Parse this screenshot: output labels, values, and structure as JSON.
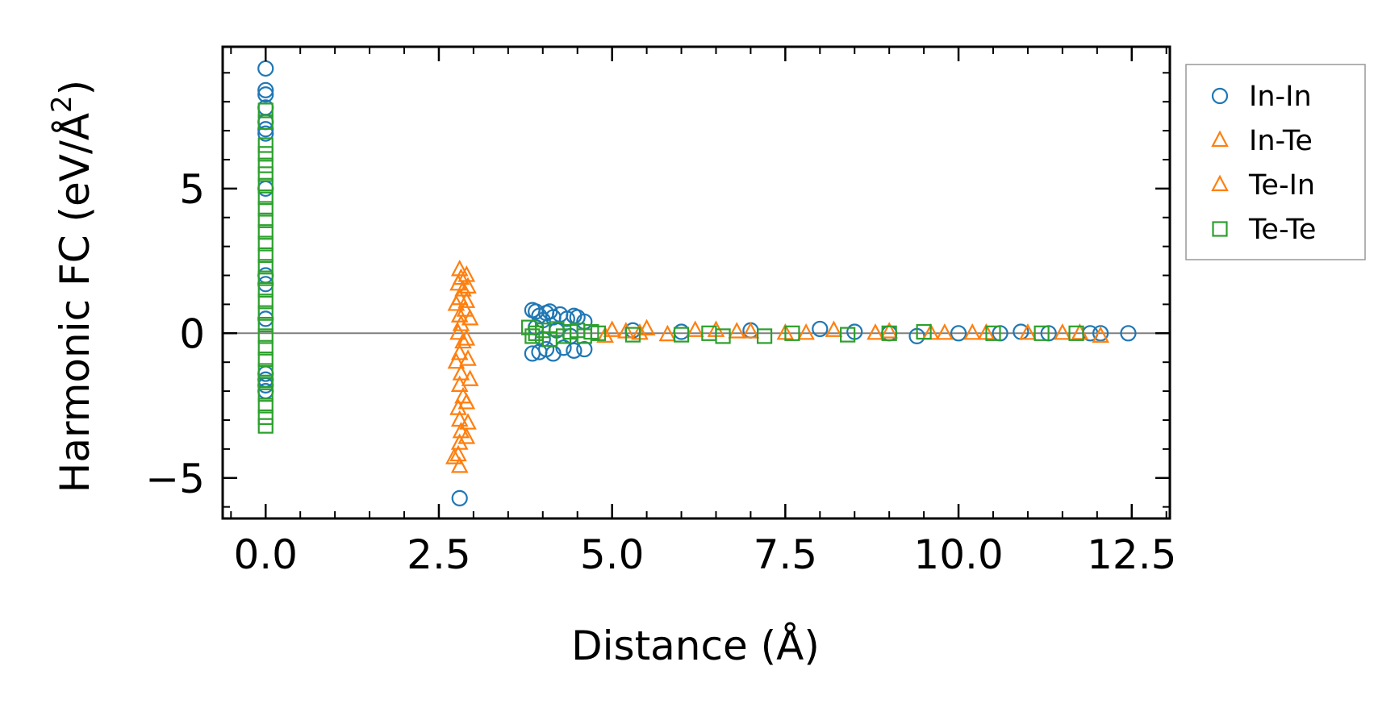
{
  "chart_data": {
    "type": "scatter",
    "xlabel": "Distance (Å)",
    "ylabel_prefix": "Harmonic FC (eV/Å",
    "ylabel_sup": "2",
    "ylabel_suffix": ")",
    "xlim": [
      -0.62,
      13.05
    ],
    "ylim": [
      -6.4,
      9.9
    ],
    "xticks": [
      0.0,
      2.5,
      5.0,
      7.5,
      10.0,
      12.5
    ],
    "xtick_labels": [
      "0.0",
      "2.5",
      "5.0",
      "7.5",
      "10.0",
      "12.5"
    ],
    "yticks": [
      -5,
      0,
      5
    ],
    "ytick_labels": [
      "−5",
      "0",
      "5"
    ],
    "zero_line": 0,
    "legend_position": "outside-right-top",
    "series": [
      {
        "name": "In-In",
        "marker": "circle",
        "color": "#1f77b4",
        "points": [
          [
            0,
            9.15
          ],
          [
            0,
            8.4
          ],
          [
            0,
            8.25
          ],
          [
            0,
            7.8
          ],
          [
            0,
            7.3
          ],
          [
            0,
            7.05
          ],
          [
            0,
            6.9
          ],
          [
            0,
            5.0
          ],
          [
            0,
            2.0
          ],
          [
            0,
            1.7
          ],
          [
            0,
            0.5
          ],
          [
            0,
            -1.4
          ],
          [
            0,
            -1.6
          ],
          [
            0,
            -1.8
          ],
          [
            0,
            -2.0
          ],
          [
            2.8,
            -5.7
          ],
          [
            3.85,
            0.8
          ],
          [
            3.9,
            0.75
          ],
          [
            3.95,
            0.6
          ],
          [
            4.0,
            0.45
          ],
          [
            4.05,
            0.7
          ],
          [
            4.1,
            0.75
          ],
          [
            4.15,
            0.55
          ],
          [
            4.25,
            0.65
          ],
          [
            4.35,
            0.5
          ],
          [
            4.45,
            0.6
          ],
          [
            4.5,
            0.55
          ],
          [
            4.6,
            0.4
          ],
          [
            3.85,
            -0.7
          ],
          [
            3.95,
            -0.65
          ],
          [
            4.05,
            -0.55
          ],
          [
            4.15,
            -0.7
          ],
          [
            4.3,
            -0.5
          ],
          [
            4.45,
            -0.6
          ],
          [
            4.6,
            -0.55
          ],
          [
            3.9,
            0.2
          ],
          [
            4.0,
            -0.2
          ],
          [
            4.2,
            0.1
          ],
          [
            4.4,
            -0.1
          ],
          [
            5.3,
            0.1
          ],
          [
            6.0,
            0.05
          ],
          [
            7.0,
            0.1
          ],
          [
            8.0,
            0.15
          ],
          [
            8.5,
            0.05
          ],
          [
            9.0,
            0.0
          ],
          [
            9.4,
            -0.1
          ],
          [
            10.0,
            0.0
          ],
          [
            10.6,
            0.0
          ],
          [
            10.9,
            0.05
          ],
          [
            11.3,
            0.0
          ],
          [
            11.9,
            0.0
          ],
          [
            12.05,
            0.0
          ],
          [
            12.45,
            0.0
          ]
        ]
      },
      {
        "name": "In-Te",
        "marker": "triangle",
        "color": "#ff7f0e",
        "points": [
          [
            2.8,
            2.2
          ],
          [
            2.82,
            1.9
          ],
          [
            2.78,
            1.7
          ],
          [
            2.85,
            1.5
          ],
          [
            2.8,
            1.2
          ],
          [
            2.75,
            1.0
          ],
          [
            2.88,
            0.8
          ],
          [
            2.8,
            0.6
          ],
          [
            2.82,
            0.3
          ],
          [
            2.78,
            0.0
          ],
          [
            2.85,
            -0.3
          ],
          [
            2.8,
            -0.7
          ],
          [
            2.75,
            -1.0
          ],
          [
            2.82,
            -1.4
          ],
          [
            2.8,
            -1.8
          ],
          [
            2.85,
            -2.2
          ],
          [
            2.78,
            -2.6
          ],
          [
            2.8,
            -3.0
          ],
          [
            2.82,
            -3.4
          ],
          [
            2.8,
            -3.8
          ],
          [
            2.78,
            -4.2
          ],
          [
            2.8,
            -4.6
          ],
          [
            5.0,
            0.1
          ],
          [
            5.2,
            0.05
          ],
          [
            5.5,
            0.15
          ],
          [
            6.2,
            0.1
          ],
          [
            6.5,
            0.1
          ],
          [
            7.0,
            0.05
          ],
          [
            7.5,
            0.0
          ],
          [
            8.2,
            0.1
          ],
          [
            9.0,
            0.05
          ],
          [
            9.8,
            0.0
          ],
          [
            10.4,
            0.0
          ],
          [
            11.0,
            0.0
          ],
          [
            11.5,
            0.0
          ]
        ]
      },
      {
        "name": "Te-In",
        "marker": "triangle",
        "color": "#ff7f0e",
        "points": [
          [
            2.9,
            2.0
          ],
          [
            2.92,
            1.6
          ],
          [
            2.9,
            1.1
          ],
          [
            2.95,
            0.5
          ],
          [
            2.9,
            -0.2
          ],
          [
            2.92,
            -0.9
          ],
          [
            2.95,
            -1.6
          ],
          [
            2.9,
            -2.4
          ],
          [
            2.92,
            -3.1
          ],
          [
            2.9,
            -3.6
          ],
          [
            2.72,
            -4.3
          ],
          [
            4.9,
            -0.1
          ],
          [
            5.4,
            0.0
          ],
          [
            5.8,
            -0.05
          ],
          [
            6.8,
            0.05
          ],
          [
            7.8,
            0.0
          ],
          [
            8.8,
            0.0
          ],
          [
            9.6,
            0.0
          ],
          [
            10.2,
            0.0
          ],
          [
            11.75,
            0.0
          ],
          [
            12.05,
            -0.1
          ]
        ]
      },
      {
        "name": "Te-Te",
        "marker": "square",
        "color": "#2ca02c",
        "points": [
          [
            0,
            7.7
          ],
          [
            0,
            7.3
          ],
          [
            0,
            6.5
          ],
          [
            0,
            6.2
          ],
          [
            0,
            5.8
          ],
          [
            0,
            5.5
          ],
          [
            0,
            5.1
          ],
          [
            0,
            4.7
          ],
          [
            0,
            4.3
          ],
          [
            0,
            3.9
          ],
          [
            0,
            3.5
          ],
          [
            0,
            3.1
          ],
          [
            0,
            2.7
          ],
          [
            0,
            2.3
          ],
          [
            0,
            1.9
          ],
          [
            0,
            1.5
          ],
          [
            0,
            1.1
          ],
          [
            0,
            0.7
          ],
          [
            0,
            0.3
          ],
          [
            0,
            -0.1
          ],
          [
            0,
            -0.5
          ],
          [
            0,
            -0.9
          ],
          [
            0,
            -1.3
          ],
          [
            0,
            -1.7
          ],
          [
            0,
            -2.1
          ],
          [
            0,
            -2.5
          ],
          [
            0,
            -2.9
          ],
          [
            0,
            -3.2
          ],
          [
            3.8,
            0.2
          ],
          [
            3.85,
            -0.1
          ],
          [
            3.9,
            0.0
          ],
          [
            4.0,
            0.1
          ],
          [
            4.1,
            -0.2
          ],
          [
            4.2,
            0.15
          ],
          [
            4.3,
            -0.1
          ],
          [
            4.4,
            0.05
          ],
          [
            4.5,
            0.1
          ],
          [
            4.6,
            -0.1
          ],
          [
            4.7,
            0.05
          ],
          [
            4.8,
            0.0
          ],
          [
            5.3,
            -0.05
          ],
          [
            6.0,
            -0.05
          ],
          [
            6.4,
            0.0
          ],
          [
            6.6,
            -0.1
          ],
          [
            7.2,
            -0.1
          ],
          [
            7.6,
            0.0
          ],
          [
            8.4,
            -0.05
          ],
          [
            9.0,
            0.0
          ],
          [
            9.5,
            0.05
          ],
          [
            10.5,
            0.0
          ],
          [
            11.2,
            0.0
          ],
          [
            11.7,
            0.0
          ]
        ]
      }
    ]
  }
}
